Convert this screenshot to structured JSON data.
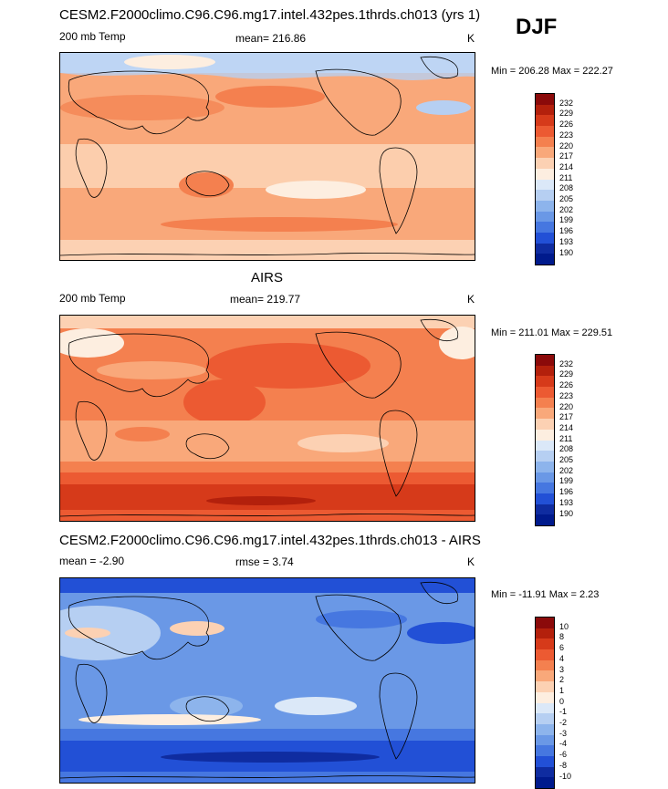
{
  "season": "DJF",
  "panels": [
    {
      "title": "CESM2.F2000climo.C96.C96.mg17.intel.432pes.1thrds.ch013 (yrs 1)",
      "left_label": "200 mb Temp",
      "center_label": "mean= 216.86",
      "units": "K",
      "minmax": "Min = 206.28 Max = 222.27",
      "levels": [
        "232",
        "229",
        "226",
        "223",
        "220",
        "217",
        "214",
        "211",
        "208",
        "205",
        "202",
        "199",
        "196",
        "193",
        "190"
      ],
      "colors": [
        "#8b0a0a",
        "#b3200c",
        "#d63a1a",
        "#ec5a32",
        "#f4804f",
        "#f9a87a",
        "#fcd1b3",
        "#fdeee0",
        "#dbe8f8",
        "#b6cff2",
        "#8db4ec",
        "#6a98e6",
        "#4677e0",
        "#2250d6",
        "#0f2ca0",
        "#001a8c"
      ]
    },
    {
      "title": "AIRS",
      "left_label": "200 mb Temp",
      "center_label": "mean= 219.77",
      "units": "K",
      "minmax": "Min = 211.01 Max = 229.51",
      "levels": [
        "232",
        "229",
        "226",
        "223",
        "220",
        "217",
        "214",
        "211",
        "208",
        "205",
        "202",
        "199",
        "196",
        "193",
        "190"
      ],
      "colors": [
        "#8b0a0a",
        "#b3200c",
        "#d63a1a",
        "#ec5a32",
        "#f4804f",
        "#f9a87a",
        "#fcd1b3",
        "#fdeee0",
        "#dbe8f8",
        "#b6cff2",
        "#8db4ec",
        "#6a98e6",
        "#4677e0",
        "#2250d6",
        "#0f2ca0",
        "#001a8c"
      ]
    },
    {
      "title": "CESM2.F2000climo.C96.C96.mg17.intel.432pes.1thrds.ch013 - AIRS",
      "left_label": "mean =  -2.90",
      "center_label": "rmse =   3.74",
      "units": "K",
      "minmax": "Min = -11.91 Max =   2.23",
      "levels": [
        "10",
        "8",
        "6",
        "4",
        "3",
        "2",
        "1",
        "0",
        "-1",
        "-2",
        "-3",
        "-4",
        "-6",
        "-8",
        "-10"
      ],
      "colors": [
        "#8b0a0a",
        "#b3200c",
        "#d63a1a",
        "#ec5a32",
        "#f4804f",
        "#f9a87a",
        "#fcd1b3",
        "#fdeee0",
        "#dbe8f8",
        "#b6cff2",
        "#8db4ec",
        "#6a98e6",
        "#4677e0",
        "#2250d6",
        "#0f2ca0",
        "#001a8c"
      ]
    }
  ]
}
